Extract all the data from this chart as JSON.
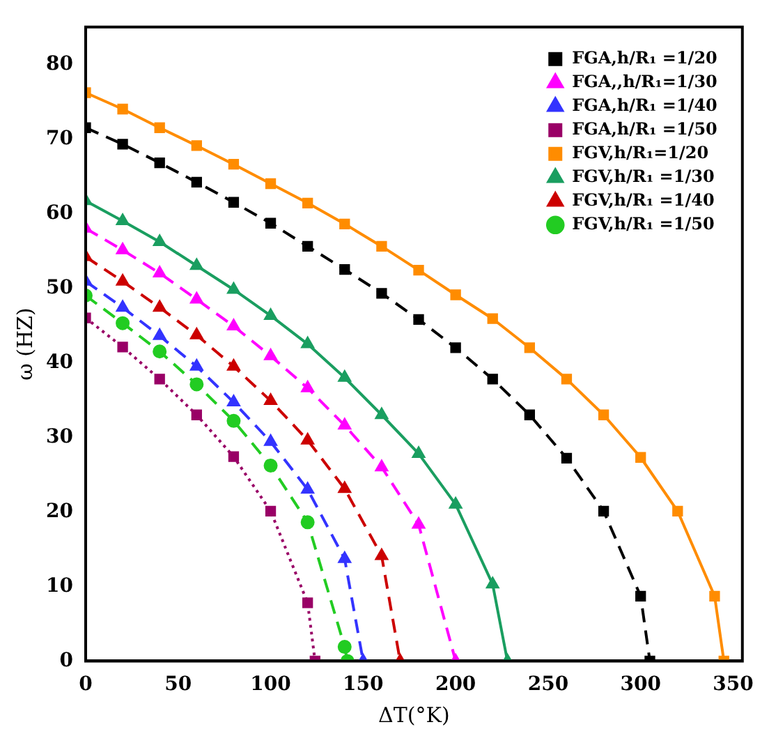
{
  "chart_data": {
    "type": "line",
    "xlabel": "ΔT(°K)",
    "ylabel": "ω (HZ)",
    "xlim": [
      0,
      355
    ],
    "xticks": [
      0,
      50,
      100,
      150,
      200,
      250,
      300,
      350
    ],
    "ylim": [
      0,
      85
    ],
    "yticks": [
      0,
      10,
      20,
      30,
      40,
      50,
      60,
      70,
      80
    ],
    "grid": false,
    "legend": "top right",
    "series": [
      {
        "name": "FGA,h/R₁ =1/20",
        "color": "#000000",
        "marker": "square",
        "line_style": "dashed",
        "x": [
          0,
          20,
          40,
          60,
          80,
          100,
          120,
          140,
          160,
          180,
          200,
          220,
          240,
          260,
          280,
          300,
          305
        ],
        "values": [
          71.5,
          69.3,
          66.8,
          64.2,
          61.5,
          58.7,
          55.6,
          52.5,
          49.3,
          45.8,
          42,
          37.8,
          33,
          27.2,
          20.1,
          8.7,
          0
        ]
      },
      {
        "name": "FGA,,h/R₁=1/30",
        "color": "#ff00ff",
        "marker": "triangle",
        "line_style": "dashed",
        "x": [
          0,
          20,
          40,
          60,
          80,
          100,
          120,
          140,
          160,
          180,
          200
        ],
        "values": [
          58,
          55.1,
          52,
          48.5,
          44.9,
          40.9,
          36.6,
          31.6,
          26,
          18.3,
          0
        ]
      },
      {
        "name": "FGA,h/R₁ =1/40",
        "color": "#3333ff",
        "marker": "triangle",
        "line_style": "dashed",
        "x": [
          0,
          20,
          40,
          60,
          80,
          100,
          120,
          140,
          150
        ],
        "values": [
          50.9,
          47.4,
          43.6,
          39.5,
          34.7,
          29.4,
          23,
          13.7,
          0
        ]
      },
      {
        "name": "FGA,h/R₁ =1/50",
        "color": "#990066",
        "marker": "square",
        "line_style": "dotted",
        "x": [
          0,
          20,
          40,
          60,
          80,
          100,
          120,
          124
        ],
        "values": [
          46,
          42.1,
          37.8,
          33,
          27.4,
          20.1,
          7.8,
          0
        ]
      },
      {
        "name": "FGV,h/R₁=1/20",
        "color": "#ff8c00",
        "marker": "square",
        "line_style": "solid",
        "x": [
          0,
          20,
          40,
          60,
          80,
          100,
          120,
          140,
          160,
          180,
          200,
          220,
          240,
          260,
          280,
          300,
          320,
          340,
          345
        ],
        "values": [
          76.2,
          74,
          71.5,
          69.1,
          66.6,
          64,
          61.4,
          58.6,
          55.6,
          52.4,
          49.1,
          45.9,
          42,
          37.8,
          33,
          27.3,
          20.1,
          8.7,
          0
        ]
      },
      {
        "name": "FGV,h/R₁ =1/30",
        "color": "#1a9e60",
        "marker": "triangle",
        "line_style": "solid",
        "x": [
          0,
          20,
          40,
          60,
          80,
          100,
          120,
          140,
          160,
          180,
          200,
          220,
          228
        ],
        "values": [
          61.7,
          59,
          56.2,
          53,
          49.8,
          46.3,
          42.5,
          38,
          33,
          27.8,
          21,
          10.3,
          0
        ]
      },
      {
        "name": "FGV,h/R₁ =1/40",
        "color": "#cc0000",
        "marker": "triangle",
        "line_style": "dashed",
        "x": [
          0,
          20,
          40,
          60,
          80,
          100,
          120,
          140,
          160,
          170
        ],
        "values": [
          54.2,
          50.9,
          47.4,
          43.7,
          39.5,
          34.9,
          29.6,
          23.1,
          14.1,
          0
        ]
      },
      {
        "name": "FGV,h/R₁ =1/50",
        "color": "#22cc22",
        "marker": "circle",
        "line_style": "dashed",
        "x": [
          0,
          20,
          40,
          60,
          80,
          100,
          120,
          140,
          141.5
        ],
        "values": [
          49,
          45.3,
          41.5,
          37.1,
          32.2,
          26.2,
          18.6,
          1.9,
          0
        ]
      }
    ]
  }
}
